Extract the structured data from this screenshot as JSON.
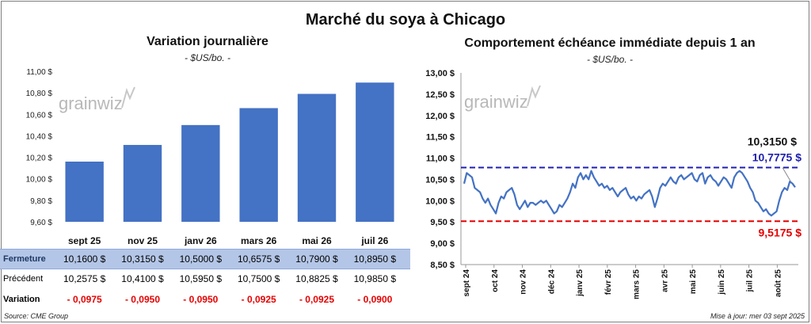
{
  "title": "Marché du soya à Chicago",
  "left_chart": {
    "title": "Variation journalière",
    "unit": "- $US/bo. -",
    "watermark": "grainwiz"
  },
  "right_chart": {
    "title": "Comportement échéance immédiate depuis 1 an",
    "unit": "- $US/bo. -",
    "watermark": "grainwiz",
    "last_label": "10,3150 $",
    "high_label": "10,7775 $",
    "low_label": "9,5175 $"
  },
  "table": {
    "rows": [
      {
        "label": "Fermeture",
        "values": [
          "10,1600",
          "10,3150",
          "10,5000",
          "10,6575",
          "10,7900",
          "10,8950"
        ],
        "unit": "$"
      },
      {
        "label": "Précédent",
        "values": [
          "10,2575",
          "10,4100",
          "10,5950",
          "10,7500",
          "10,8825",
          "10,9850"
        ],
        "unit": "$"
      },
      {
        "label": "Variation",
        "values": [
          "- 0,0975",
          "- 0,0950",
          "- 0,0950",
          "- 0,0925",
          "- 0,0925",
          "- 0,0900"
        ],
        "unit": ""
      }
    ]
  },
  "footer": {
    "source": "Source: CME Group",
    "updated": "Mise à jour: mer 03 sept 2025"
  },
  "colors": {
    "bar": "#4472c4",
    "line": "#4472c4",
    "high": "#1f1faf",
    "low": "#e60000",
    "table_highlight": "#b4c6e7",
    "negative": "#e60000"
  },
  "chart_data": [
    {
      "type": "bar",
      "categories": [
        "sept 25",
        "nov 25",
        "janv 26",
        "mars 26",
        "mai 26",
        "juil 26"
      ],
      "values": [
        10.16,
        10.315,
        10.5,
        10.6575,
        10.79,
        10.895
      ],
      "ylim": [
        9.6,
        11.0
      ],
      "yticks": [
        "9,60 $",
        "9,80 $",
        "10,00 $",
        "10,20 $",
        "10,40 $",
        "10,60 $",
        "10,80 $",
        "11,00 $"
      ],
      "ytick_values": [
        9.6,
        9.8,
        10.0,
        10.2,
        10.4,
        10.6,
        10.8,
        11.0
      ],
      "grid": false
    },
    {
      "type": "line",
      "x_labels": [
        "sept 24",
        "oct 24",
        "nov 24",
        "déc 24",
        "janv 25",
        "févr 25",
        "mars 25",
        "avr 25",
        "mai 25",
        "juin 25",
        "juil 25",
        "août 25"
      ],
      "ylim": [
        8.5,
        13.0
      ],
      "yticks": [
        "8,50 $",
        "9,00 $",
        "9,50 $",
        "10,00 $",
        "10,50 $",
        "11,00 $",
        "11,50 $",
        "12,00 $",
        "12,50 $",
        "13,00 $"
      ],
      "ytick_values": [
        8.5,
        9.0,
        9.5,
        10.0,
        10.5,
        11.0,
        11.5,
        12.0,
        12.5,
        13.0
      ],
      "series": [
        {
          "values": [
            10.4,
            10.65,
            10.6,
            10.55,
            10.3,
            10.25,
            10.2,
            10.05,
            9.95,
            10.05,
            9.9,
            9.8,
            9.7,
            9.95,
            10.1,
            10.05,
            10.2,
            10.25,
            10.3,
            10.15,
            9.9,
            9.8,
            9.9,
            10.0,
            9.85,
            9.95,
            9.95,
            9.9,
            9.95,
            10.0,
            9.95,
            10.0,
            9.9,
            9.8,
            9.7,
            9.75,
            9.9,
            9.85,
            9.95,
            10.05,
            10.2,
            10.4,
            10.3,
            10.55,
            10.65,
            10.5,
            10.6,
            10.5,
            10.7,
            10.55,
            10.45,
            10.35,
            10.4,
            10.3,
            10.35,
            10.25,
            10.3,
            10.2,
            10.1,
            10.2,
            10.25,
            10.3,
            10.15,
            10.05,
            10.1,
            10.0,
            10.1,
            10.05,
            10.15,
            10.2,
            10.25,
            10.1,
            9.85,
            10.05,
            10.3,
            10.4,
            10.35,
            10.45,
            10.55,
            10.45,
            10.4,
            10.55,
            10.6,
            10.5,
            10.55,
            10.6,
            10.65,
            10.5,
            10.45,
            10.6,
            10.65,
            10.4,
            10.55,
            10.6,
            10.5,
            10.45,
            10.35,
            10.45,
            10.55,
            10.5,
            10.4,
            10.3,
            10.55,
            10.65,
            10.7,
            10.65,
            10.55,
            10.45,
            10.3,
            10.2,
            10.0,
            9.95,
            9.85,
            9.75,
            9.8,
            9.7,
            9.65,
            9.7,
            9.75,
            10.0,
            10.2,
            10.3,
            10.25,
            10.45,
            10.4,
            10.315
          ]
        }
      ],
      "high": 10.7775,
      "low": 9.5175,
      "last": 10.315
    }
  ]
}
